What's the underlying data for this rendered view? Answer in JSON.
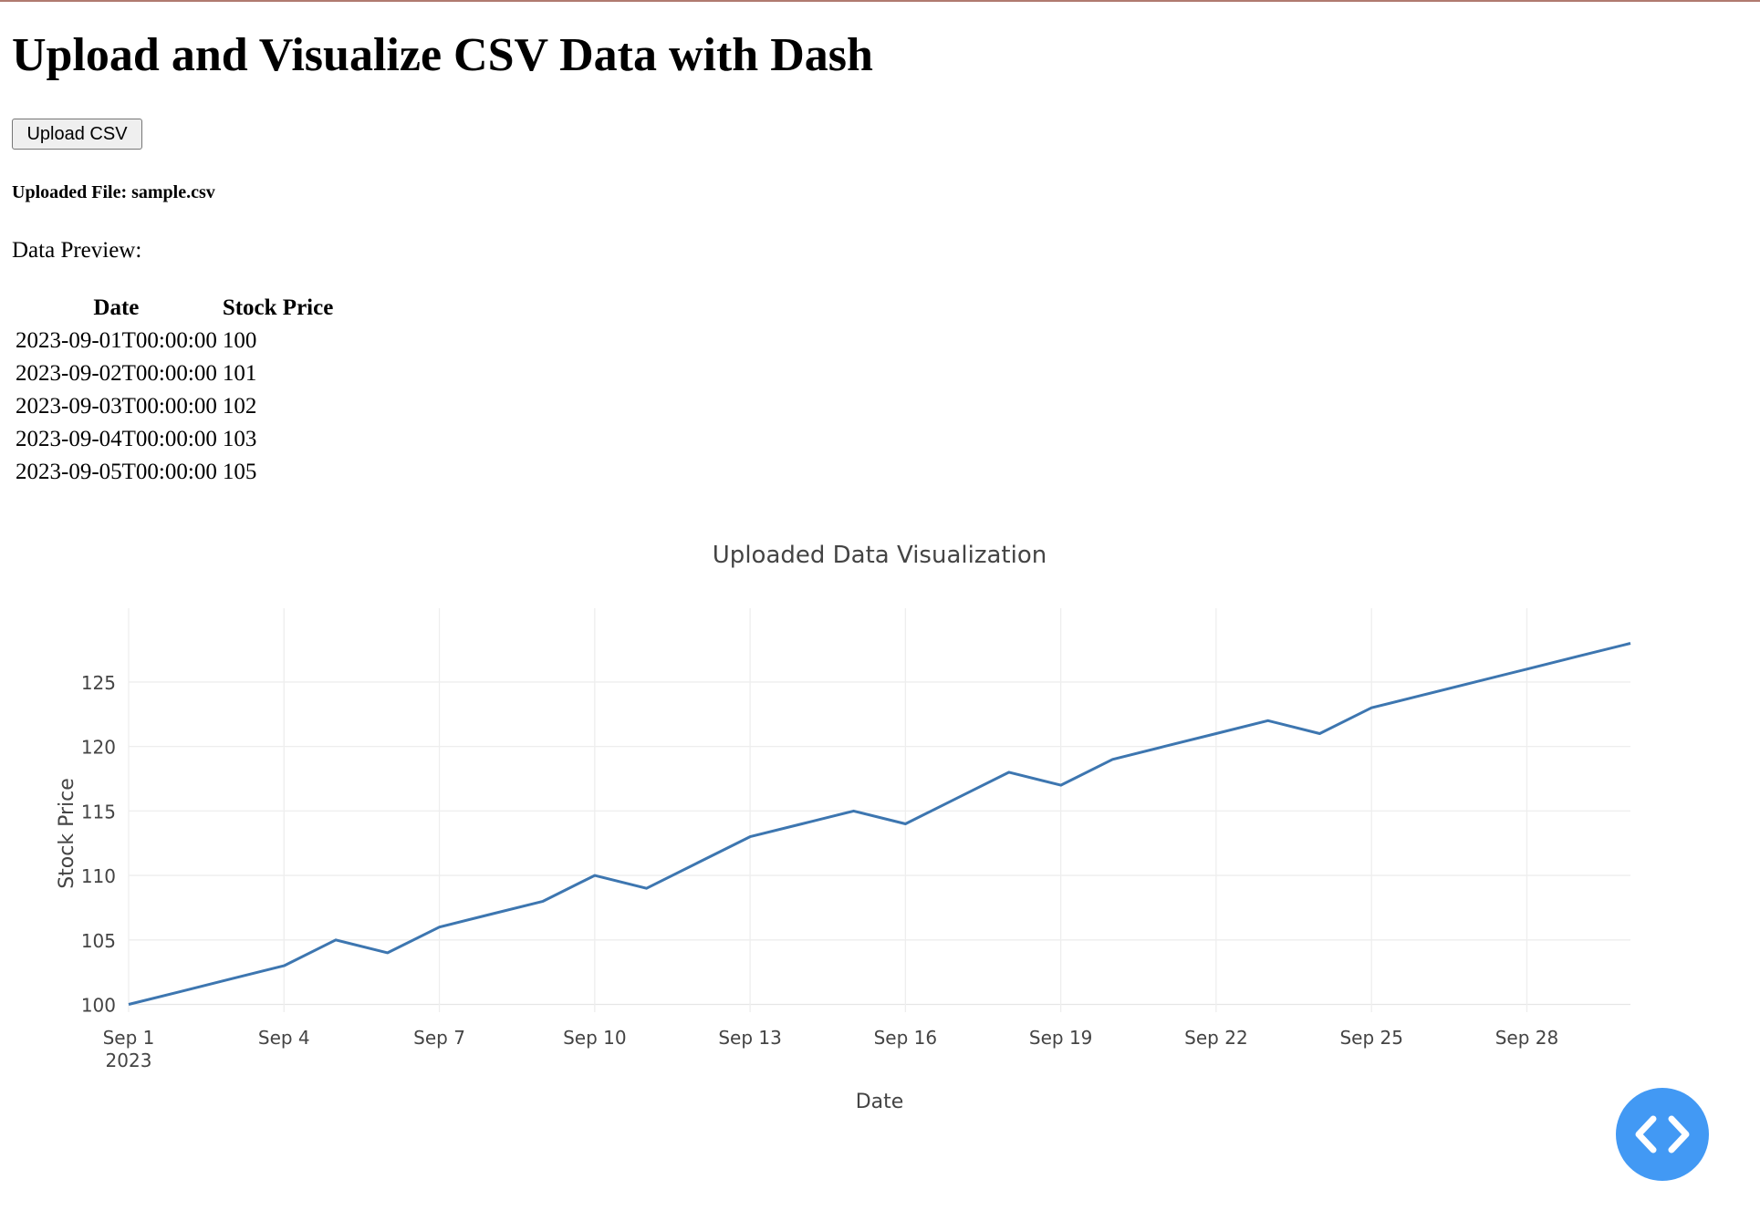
{
  "header": {
    "title": "Upload and Visualize CSV Data with Dash"
  },
  "upload": {
    "button_label": "Upload CSV"
  },
  "uploaded_file": {
    "text": "Uploaded File: sample.csv"
  },
  "preview": {
    "label": "Data Preview:",
    "columns": [
      "Date",
      "Stock Price"
    ],
    "rows": [
      [
        "2023-09-01T00:00:00",
        "100"
      ],
      [
        "2023-09-02T00:00:00",
        "101"
      ],
      [
        "2023-09-03T00:00:00",
        "102"
      ],
      [
        "2023-09-04T00:00:00",
        "103"
      ],
      [
        "2023-09-05T00:00:00",
        "105"
      ]
    ]
  },
  "fab": {
    "icon": "code-icon",
    "color": "#4299f4"
  },
  "chart_data": {
    "type": "line",
    "title": "Uploaded Data Visualization",
    "xlabel": "Date",
    "ylabel": "Stock Price",
    "line_color": "#3d76b0",
    "grid": true,
    "xlim": [
      "2023-09-01",
      "2023-09-30"
    ],
    "ylim": [
      99.4,
      128.6
    ],
    "x_ticks": [
      {
        "date": "2023-09-01",
        "label": "Sep 1",
        "sublabel": "2023"
      },
      {
        "date": "2023-09-04",
        "label": "Sep 4"
      },
      {
        "date": "2023-09-07",
        "label": "Sep 7"
      },
      {
        "date": "2023-09-10",
        "label": "Sep 10"
      },
      {
        "date": "2023-09-13",
        "label": "Sep 13"
      },
      {
        "date": "2023-09-16",
        "label": "Sep 16"
      },
      {
        "date": "2023-09-19",
        "label": "Sep 19"
      },
      {
        "date": "2023-09-22",
        "label": "Sep 22"
      },
      {
        "date": "2023-09-25",
        "label": "Sep 25"
      },
      {
        "date": "2023-09-28",
        "label": "Sep 28"
      }
    ],
    "y_ticks": [
      100,
      105,
      110,
      115,
      120,
      125
    ],
    "x": [
      "2023-09-01",
      "2023-09-02",
      "2023-09-03",
      "2023-09-04",
      "2023-09-05",
      "2023-09-06",
      "2023-09-07",
      "2023-09-08",
      "2023-09-09",
      "2023-09-10",
      "2023-09-11",
      "2023-09-12",
      "2023-09-13",
      "2023-09-14",
      "2023-09-15",
      "2023-09-16",
      "2023-09-17",
      "2023-09-18",
      "2023-09-19",
      "2023-09-20",
      "2023-09-21",
      "2023-09-22",
      "2023-09-23",
      "2023-09-24",
      "2023-09-25",
      "2023-09-26",
      "2023-09-27",
      "2023-09-28",
      "2023-09-29",
      "2023-09-30"
    ],
    "values": [
      100,
      101,
      102,
      103,
      105,
      104,
      106,
      107,
      108,
      110,
      109,
      111,
      113,
      114,
      115,
      114,
      116,
      118,
      117,
      119,
      120,
      121,
      122,
      121,
      123,
      124,
      125,
      126,
      127,
      128
    ]
  }
}
